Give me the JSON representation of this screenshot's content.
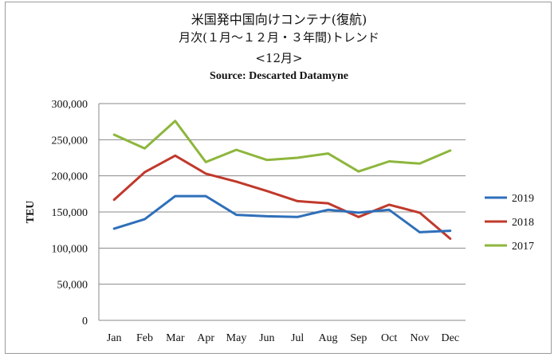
{
  "chart_data": {
    "type": "line",
    "title": "米国発中国向けコンテナ(復航)",
    "subtitle": "月次(１月～１２月・３年間)トレンド",
    "period_label": "<12月>",
    "source": "Source: Descarted Datamyne",
    "ylabel": "TEU",
    "xlabel": "",
    "ylim": [
      0,
      300000
    ],
    "yticks": [
      0,
      50000,
      100000,
      150000,
      200000,
      250000,
      300000
    ],
    "ytick_labels": [
      "0",
      "50,000",
      "100,000",
      "150,000",
      "200,000",
      "250,000",
      "300,000"
    ],
    "categories": [
      "Jan",
      "Feb",
      "Mar",
      "Apr",
      "May",
      "Jun",
      "Jul",
      "Aug",
      "Sep",
      "Oct",
      "Nov",
      "Dec"
    ],
    "grid": "horizontal",
    "legend_position": "right",
    "series": [
      {
        "name": "2019",
        "color": "#2e6fba",
        "values": [
          127000,
          140000,
          172000,
          172000,
          146000,
          144000,
          143000,
          153000,
          149000,
          153000,
          122000,
          124000
        ]
      },
      {
        "name": "2018",
        "color": "#c0392b",
        "values": [
          167000,
          205000,
          228000,
          203000,
          192000,
          179000,
          165000,
          162000,
          143000,
          160000,
          149000,
          113000
        ]
      },
      {
        "name": "2017",
        "color": "#8db63c",
        "values": [
          257000,
          238000,
          276000,
          219000,
          236000,
          222000,
          225000,
          231000,
          206000,
          220000,
          217000,
          235000
        ]
      }
    ]
  }
}
